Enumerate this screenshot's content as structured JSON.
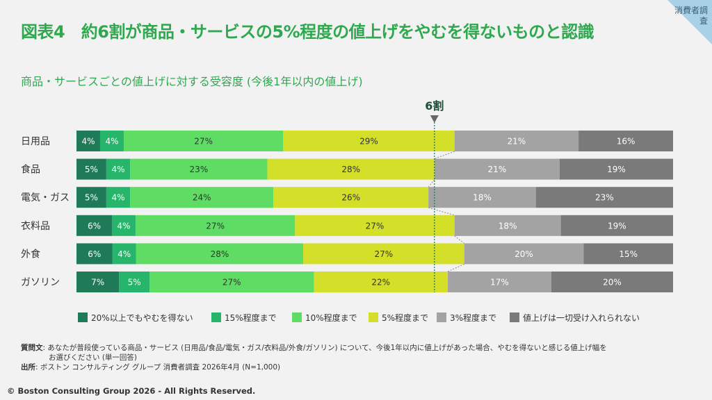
{
  "header": {
    "title": "図表4　約6割が商品・サービスの5%程度の値上げをやむを得ないものと認識",
    "subtitle": "商品・サービスごとの値上げに対する受容度 (今後1年以内の値上げ)",
    "corner_tag": "消費者調査"
  },
  "chart_data": {
    "type": "bar",
    "orientation": "horizontal",
    "stacked": true,
    "normalized_percent": true,
    "annotation": {
      "label": "6割",
      "value": 60
    },
    "categories": [
      "日用品",
      "食品",
      "電気・ガス",
      "衣料品",
      "外食",
      "ガソリン"
    ],
    "series": [
      {
        "name": "20%以上でもやむを得ない",
        "color": "#1f7a57",
        "values": [
          4,
          5,
          5,
          6,
          6,
          7
        ]
      },
      {
        "name": "15%程度まで",
        "color": "#26b56a",
        "values": [
          4,
          4,
          4,
          4,
          4,
          5
        ]
      },
      {
        "name": "10%程度まで",
        "color": "#5fdc64",
        "values": [
          27,
          23,
          24,
          27,
          28,
          27
        ]
      },
      {
        "name": "5%程度まで",
        "color": "#d4df2a",
        "values": [
          29,
          28,
          26,
          27,
          27,
          22
        ]
      },
      {
        "name": "3%程度まで",
        "color": "#a3a3a3",
        "values": [
          21,
          21,
          18,
          18,
          20,
          17
        ]
      },
      {
        "name": "値上げは一切受け入れられない",
        "color": "#7a7a7a",
        "values": [
          16,
          19,
          23,
          19,
          15,
          20
        ]
      }
    ],
    "value_suffix": "%",
    "legend_position": "bottom"
  },
  "footnote": {
    "question_label": "質問文",
    "question_text": ": あなたが普段使っている商品・サービス (日用品/食品/電気・ガス/衣料品/外食/ガソリン) について、今後1年以内に値上げがあった場合、やむを得ないと感じる値上げ幅を",
    "question_text_2": "お選びください (単一回答)",
    "source_label": "出所",
    "source_text": ": ボストン コンサルティング グループ 消費者調査 2026年4月 (N=1,000)"
  },
  "copyright": "© Boston Consulting Group 2026 - All Rights Reserved."
}
